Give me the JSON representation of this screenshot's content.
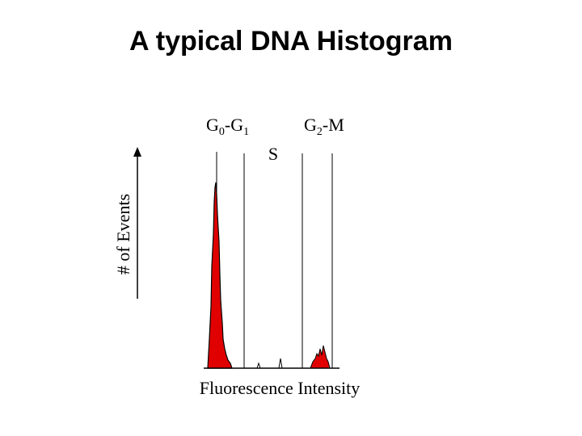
{
  "title": "A typical DNA Histogram",
  "phases": {
    "g0_g1": {
      "base1": "G",
      "sub1": "0",
      "base2": "-G",
      "sub2": "1"
    },
    "s": "S",
    "g2_m": {
      "base1": "G",
      "sub1": "2",
      "base2": "-M"
    }
  },
  "axes": {
    "y_label": "# of Events",
    "x_label": "Fluorescence Intensity"
  }
}
